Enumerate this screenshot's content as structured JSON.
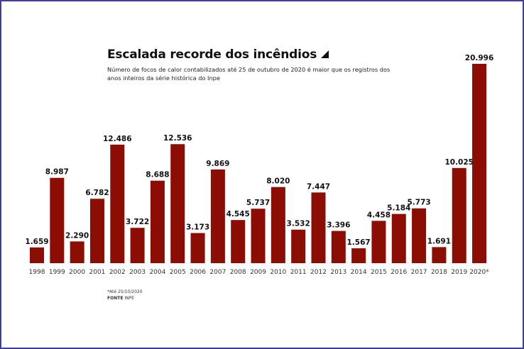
{
  "chart_data": {
    "type": "bar",
    "title": "Escalada recorde dos incêndios",
    "subtitle": "Número de focos de calor contabilizados até 25 de outubro de 2020 é maior que os registros dos anos inteiros da série histórica do Inpe",
    "categories": [
      "1998",
      "1999",
      "2000",
      "2001",
      "2002",
      "2003",
      "2004",
      "2005",
      "2006",
      "2007",
      "2008",
      "2009",
      "2010",
      "2011",
      "2012",
      "2013",
      "2014",
      "2015",
      "2016",
      "2017",
      "2018",
      "2019",
      "2020*"
    ],
    "values": [
      1659,
      8987,
      2290,
      6782,
      12486,
      3722,
      8688,
      12536,
      3173,
      9869,
      4545,
      5737,
      8020,
      3532,
      7447,
      3396,
      1567,
      4458,
      5184,
      5773,
      1691,
      10025,
      20996
    ],
    "data_labels": [
      "1.659",
      "8.987",
      "2.290",
      "6.782",
      "12.486",
      "3.722",
      "8.688",
      "12.536",
      "3.173",
      "9.869",
      "4.545",
      "5.737",
      "8.020",
      "3.532",
      "7.447",
      "3.396",
      "1.567",
      "4.458",
      "5.184",
      "5.773",
      "1.691",
      "10.025",
      "20.996"
    ],
    "ylim": [
      0,
      21000
    ],
    "grid": false,
    "bar_color": "#8b0d04"
  },
  "notes": {
    "footnote": "*Até 25/10/2020",
    "source_label": "FONTE",
    "source": "INPE"
  }
}
